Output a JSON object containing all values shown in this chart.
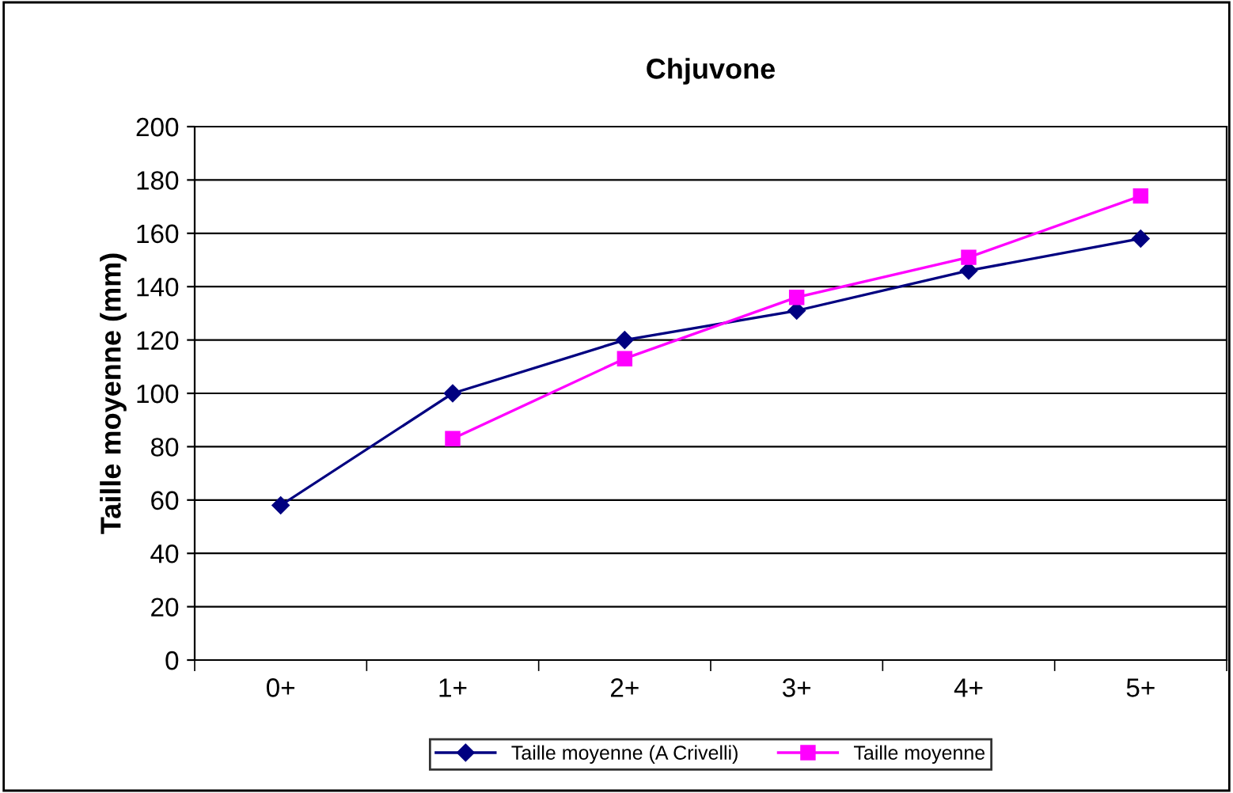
{
  "chart_data": {
    "type": "line",
    "title": "Chjuvone",
    "ylabel": "Taille moyenne (mm)",
    "categories": [
      "0+",
      "1+",
      "2+",
      "3+",
      "4+",
      "5+"
    ],
    "series": [
      {
        "name": "Taille moyenne (A Crivelli)",
        "color": "#000080",
        "marker": "diamond",
        "values": [
          58,
          100,
          120,
          131,
          146,
          158
        ]
      },
      {
        "name": "Taille moyenne",
        "color": "#ff00ff",
        "marker": "square",
        "values": [
          null,
          83,
          113,
          136,
          151,
          174
        ]
      }
    ],
    "ylim": [
      0,
      200
    ],
    "yticks": [
      0,
      20,
      40,
      60,
      80,
      100,
      120,
      140,
      160,
      180,
      200
    ],
    "grid": "y",
    "legend": "bottom"
  }
}
